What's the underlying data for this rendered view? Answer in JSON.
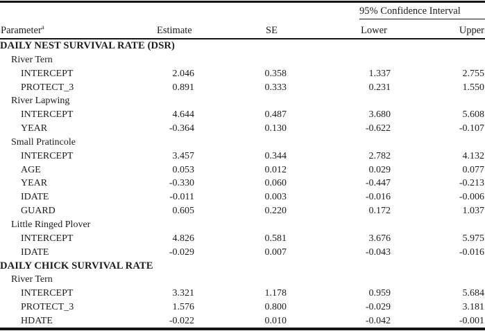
{
  "table": {
    "ci_header": "95% Confidence Interval",
    "columns": {
      "parameter": "Parameter",
      "parameter_sup": "a",
      "estimate": "Estimate",
      "se": "SE",
      "lower": "Lower",
      "upper": "Upper"
    },
    "colors": {
      "text": "#1c1c1c",
      "rule": "#141414",
      "background": "#ffffff"
    },
    "rows": [
      {
        "type": "section",
        "label": "DAILY NEST SURVIVAL RATE (DSR)"
      },
      {
        "type": "species",
        "label": "River Tern"
      },
      {
        "type": "param",
        "label": "INTERCEPT",
        "estimate": "2.046",
        "se": "0.358",
        "lower": "1.337",
        "upper": "2.755"
      },
      {
        "type": "param",
        "label": "PROTECT_3",
        "estimate": "0.891",
        "se": "0.333",
        "lower": "0.231",
        "upper": "1.550"
      },
      {
        "type": "species",
        "label": "River Lapwing"
      },
      {
        "type": "param",
        "label": "INTERCEPT",
        "estimate": "4.644",
        "se": "0.487",
        "lower": "3.680",
        "upper": "5.608"
      },
      {
        "type": "param",
        "label": "YEAR",
        "estimate": "-0.364",
        "se": "0.130",
        "lower": "-0.622",
        "upper": "-0.107"
      },
      {
        "type": "species",
        "label": "Small Pratincole"
      },
      {
        "type": "param",
        "label": "INTERCEPT",
        "estimate": "3.457",
        "se": "0.344",
        "lower": "2.782",
        "upper": "4.132"
      },
      {
        "type": "param",
        "label": "AGE",
        "estimate": "0.053",
        "se": "0.012",
        "lower": "0.029",
        "upper": "0.077"
      },
      {
        "type": "param",
        "label": "YEAR",
        "estimate": "-0.330",
        "se": "0.060",
        "lower": "-0.447",
        "upper": "-0.213"
      },
      {
        "type": "param",
        "label": "IDATE",
        "estimate": "-0.011",
        "se": "0.003",
        "lower": "-0.016",
        "upper": "-0.006"
      },
      {
        "type": "param",
        "label": "GUARD",
        "estimate": "0.605",
        "se": "0.220",
        "lower": "0.172",
        "upper": "1.037"
      },
      {
        "type": "species",
        "label": "Little Ringed Plover"
      },
      {
        "type": "param",
        "label": "INTERCEPT",
        "estimate": "4.826",
        "se": "0.581",
        "lower": "3.676",
        "upper": "5.975"
      },
      {
        "type": "param",
        "label": "IDATE",
        "estimate": "-0.029",
        "se": "0.007",
        "lower": "-0.043",
        "upper": "-0.016"
      },
      {
        "type": "section",
        "label": "DAILY CHICK SURVIVAL RATE"
      },
      {
        "type": "species",
        "label": "River Tern"
      },
      {
        "type": "param",
        "label": "INTERCEPT",
        "estimate": "3.321",
        "se": "1.178",
        "lower": "0.959",
        "upper": "5.684"
      },
      {
        "type": "param",
        "label": "PROTECT_3",
        "estimate": "1.576",
        "se": "0.800",
        "lower": "-0.029",
        "upper": "3.181"
      },
      {
        "type": "param",
        "label": "HDATE",
        "estimate": "-0.022",
        "se": "0.010",
        "lower": "-0.042",
        "upper": "-0.001"
      }
    ]
  }
}
